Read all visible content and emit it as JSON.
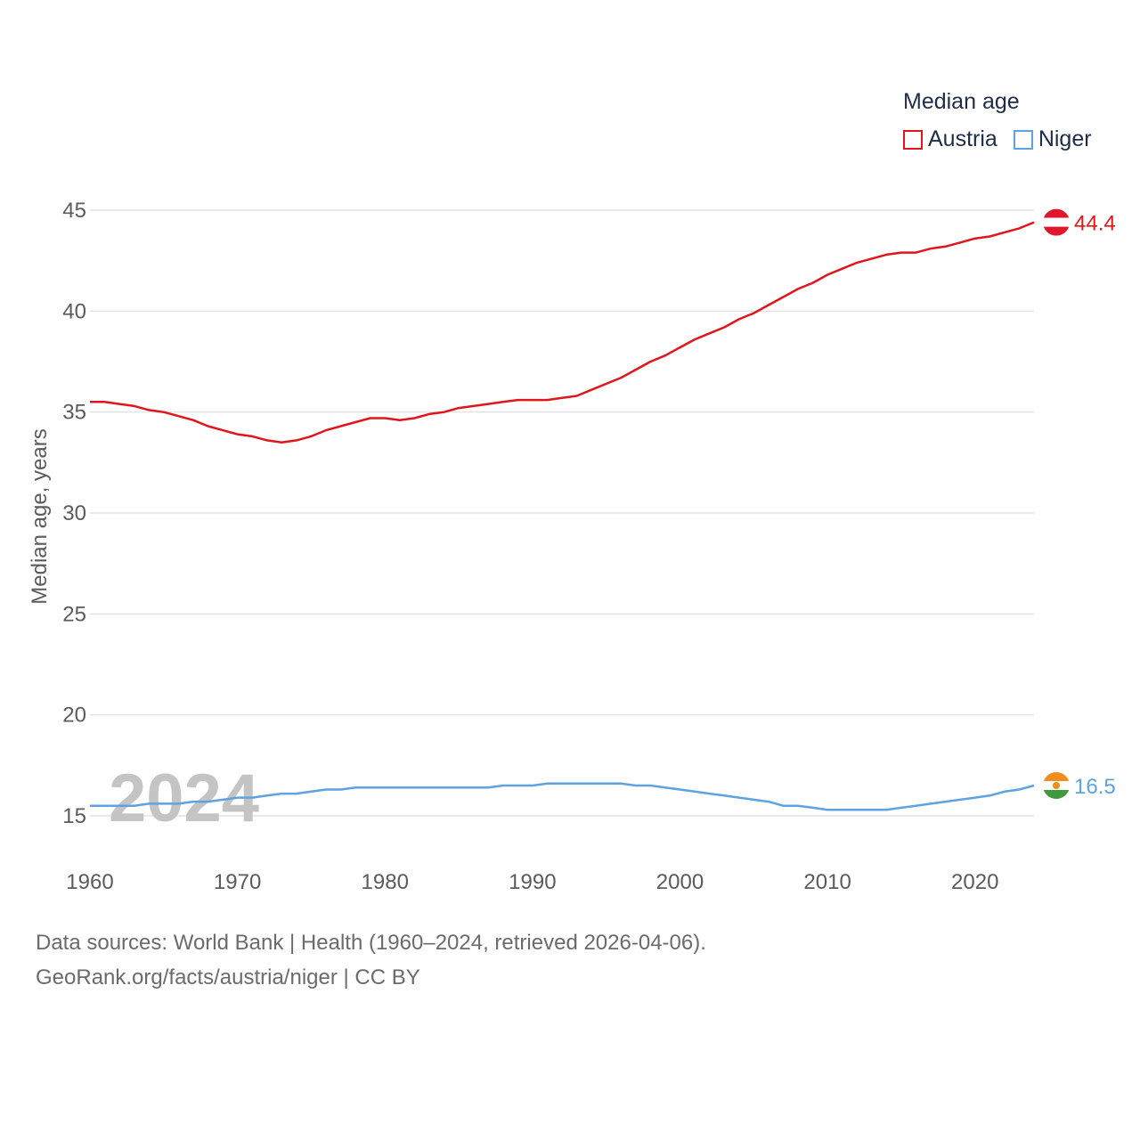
{
  "legend": {
    "title": "Median age"
  },
  "chart_data": {
    "type": "line",
    "title": "Median age",
    "ylabel": "Median age, years",
    "xlabel": "",
    "xlim": [
      1960,
      2024
    ],
    "ylim": [
      13,
      47
    ],
    "yticks": [
      15,
      20,
      25,
      30,
      35,
      40,
      45
    ],
    "xticks": [
      1960,
      1970,
      1980,
      1990,
      2000,
      2010,
      2020
    ],
    "year_label": "2024",
    "x": [
      1960,
      1961,
      1962,
      1963,
      1964,
      1965,
      1966,
      1967,
      1968,
      1969,
      1970,
      1971,
      1972,
      1973,
      1974,
      1975,
      1976,
      1977,
      1978,
      1979,
      1980,
      1981,
      1982,
      1983,
      1984,
      1985,
      1986,
      1987,
      1988,
      1989,
      1990,
      1991,
      1992,
      1993,
      1994,
      1995,
      1996,
      1997,
      1998,
      1999,
      2000,
      2001,
      2002,
      2003,
      2004,
      2005,
      2006,
      2007,
      2008,
      2009,
      2010,
      2011,
      2012,
      2013,
      2014,
      2015,
      2016,
      2017,
      2018,
      2019,
      2020,
      2021,
      2022,
      2023,
      2024
    ],
    "series": [
      {
        "name": "Austria",
        "color": "#e0161b",
        "end_label": "44.4",
        "values": [
          35.5,
          35.5,
          35.4,
          35.3,
          35.1,
          35.0,
          34.8,
          34.6,
          34.3,
          34.1,
          33.9,
          33.8,
          33.6,
          33.5,
          33.6,
          33.8,
          34.1,
          34.3,
          34.5,
          34.7,
          34.7,
          34.6,
          34.7,
          34.9,
          35.0,
          35.2,
          35.3,
          35.4,
          35.5,
          35.6,
          35.6,
          35.6,
          35.7,
          35.8,
          36.1,
          36.4,
          36.7,
          37.1,
          37.5,
          37.8,
          38.2,
          38.6,
          38.9,
          39.2,
          39.6,
          39.9,
          40.3,
          40.7,
          41.1,
          41.4,
          41.8,
          42.1,
          42.4,
          42.6,
          42.8,
          42.9,
          42.9,
          43.1,
          43.2,
          43.4,
          43.6,
          43.7,
          43.9,
          44.1,
          44.4
        ]
      },
      {
        "name": "Niger",
        "color": "#5da3e4",
        "end_label": "16.5",
        "values": [
          15.5,
          15.5,
          15.5,
          15.5,
          15.6,
          15.6,
          15.6,
          15.7,
          15.7,
          15.8,
          15.9,
          15.9,
          16.0,
          16.1,
          16.1,
          16.2,
          16.3,
          16.3,
          16.4,
          16.4,
          16.4,
          16.4,
          16.4,
          16.4,
          16.4,
          16.4,
          16.4,
          16.4,
          16.5,
          16.5,
          16.5,
          16.6,
          16.6,
          16.6,
          16.6,
          16.6,
          16.6,
          16.5,
          16.5,
          16.4,
          16.3,
          16.2,
          16.1,
          16.0,
          15.9,
          15.8,
          15.7,
          15.5,
          15.5,
          15.4,
          15.3,
          15.3,
          15.3,
          15.3,
          15.3,
          15.4,
          15.5,
          15.6,
          15.7,
          15.8,
          15.9,
          16.0,
          16.2,
          16.3,
          16.5
        ]
      }
    ]
  },
  "source": {
    "line1": "Data sources: World Bank | Health (1960–2024, retrieved 2026-04-06).",
    "line2": "GeoRank.org/facts/austria/niger | CC BY"
  }
}
